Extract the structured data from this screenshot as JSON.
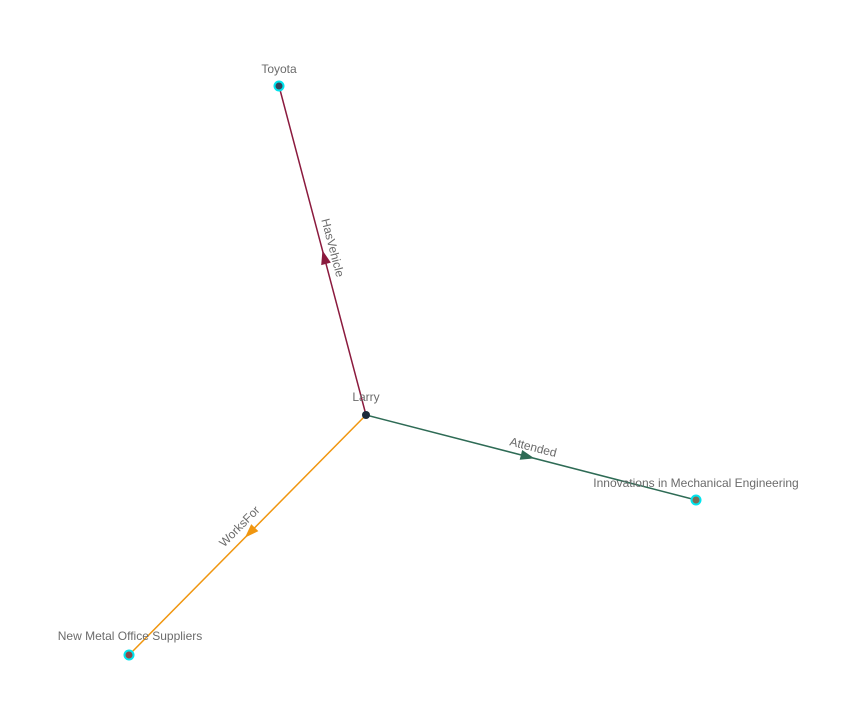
{
  "graph": {
    "nodes": [
      {
        "id": "larry",
        "label": "Larry",
        "fill": "#1c2a3a",
        "ring": null
      },
      {
        "id": "toyota",
        "label": "Toyota",
        "fill": "#34445a",
        "ring": "#00e5ee"
      },
      {
        "id": "innov",
        "label": "Innovations in Mechanical Engineering",
        "fill": "#7a6e58",
        "ring": "#00e5ee"
      },
      {
        "id": "newmetal",
        "label": "New Metal Office Suppliers",
        "fill": "#8a4a4a",
        "ring": "#00e5ee"
      }
    ],
    "edges": [
      {
        "source": "larry",
        "target": "toyota",
        "label": "HasVehicle",
        "color": "#8b1a3e"
      },
      {
        "source": "larry",
        "target": "innov",
        "label": "Attended",
        "color": "#2e6b55"
      },
      {
        "source": "larry",
        "target": "newmetal",
        "label": "WorksFor",
        "color": "#f0960f"
      }
    ]
  }
}
